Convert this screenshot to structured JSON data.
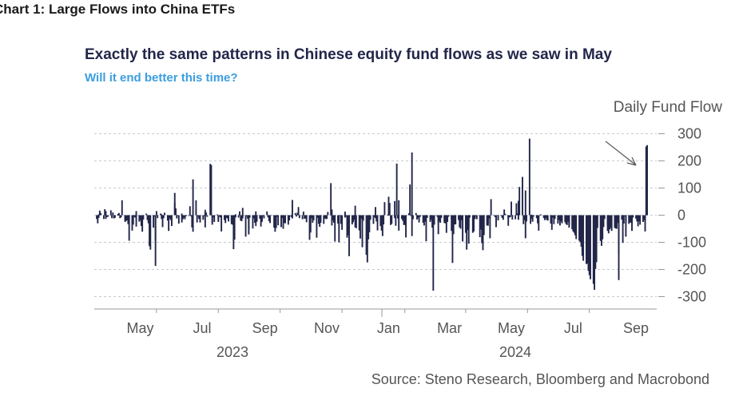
{
  "header": {
    "title": "Chart 1: Large Flows into China ETFs"
  },
  "chart_data": {
    "type": "bar",
    "title": "Exactly the same patterns in Chinese equity fund flows as we saw in May",
    "subtitle": "Will it end better this time?",
    "series_label": "Daily Fund Flow",
    "source": "Source: Steno Research, Bloomberg and Macrobond",
    "ylim": [
      -320,
      320
    ],
    "yticks": [
      300,
      200,
      100,
      0,
      -100,
      -200,
      -300
    ],
    "month_ticks": [
      "May",
      "Jul",
      "Sep",
      "Nov",
      "Jan",
      "Mar",
      "May",
      "Jul",
      "Sep"
    ],
    "years": [
      "2023",
      "2024"
    ],
    "date_range": [
      "2023-04-03",
      "2024-09-27"
    ],
    "bar_color": "#222649",
    "annotation": "arrow pointing to latest bar",
    "values": [
      -14,
      -30,
      -10,
      3,
      17,
      8,
      -14,
      22,
      -14,
      15,
      -7,
      -6,
      18,
      -11,
      -4,
      10,
      -12,
      -10,
      5,
      -2,
      8,
      -11,
      -8,
      55,
      -25,
      -18,
      -21,
      -19,
      -33,
      -4,
      -94,
      -57,
      -35,
      -6,
      -9,
      -42,
      15,
      -24,
      -19,
      -40,
      -61,
      -21,
      -16,
      6,
      -18,
      -30,
      -114,
      -4,
      -127,
      -46,
      -5,
      -94,
      -187,
      15,
      -11,
      6,
      -14,
      3,
      -44,
      -11,
      9,
      -20,
      -58,
      -13,
      -12,
      -18,
      -40,
      45,
      82,
      25,
      -12,
      -3,
      -31,
      6,
      -27,
      -15,
      -9,
      -15,
      -4,
      -3,
      -3,
      33,
      -4,
      -45,
      -61,
      132,
      55,
      -27,
      -4,
      -12,
      -14,
      -27,
      -17,
      -4,
      20,
      -45,
      10,
      -6,
      189,
      185,
      -28,
      -35,
      -8,
      -25,
      3,
      -25,
      -20,
      -5,
      -8,
      -60,
      -18,
      -11,
      -29,
      -9,
      -12,
      -23,
      -33,
      -26,
      -35,
      -125,
      -90,
      -8,
      3,
      -9,
      14,
      -20,
      -22,
      -12,
      27,
      -79,
      -4,
      -13,
      -52,
      -71,
      -9,
      -49,
      -12,
      -28,
      14,
      -40,
      -24,
      -13,
      -42,
      -21,
      -25,
      -3,
      -12,
      14,
      -8,
      -3,
      -22,
      -29,
      -1,
      -46,
      -61,
      -49,
      -47,
      -6,
      -37,
      -44,
      -7,
      -11,
      -50,
      -29,
      -30,
      -15,
      -35,
      -19,
      -1,
      -7,
      56,
      -12,
      8,
      -5,
      9,
      30,
      -5,
      -11,
      -15,
      13,
      -13,
      -13,
      -8,
      -26,
      -91,
      -64,
      -11,
      -28,
      -2,
      -19,
      -83,
      -10,
      -32,
      -14,
      -43,
      -28,
      -32,
      -8,
      -12,
      -14,
      -14,
      12,
      118,
      -38,
      21,
      -20,
      -28,
      -97,
      -19,
      -31,
      -100,
      -2,
      -32,
      -54,
      13,
      -9,
      -5,
      -83,
      -74,
      -151,
      -49,
      -34,
      -26,
      -17,
      35,
      -45,
      -48,
      -56,
      -86,
      -13,
      -27,
      -118,
      -20,
      -146,
      -174,
      -2,
      -89,
      -63,
      -17,
      -32,
      -7,
      30,
      -11,
      -23,
      -56,
      -40,
      -4,
      -57,
      -77,
      -34,
      48,
      2,
      -2,
      68,
      45,
      -36,
      -32,
      -11,
      52,
      -39,
      190,
      -12,
      55,
      -57,
      -14,
      -21,
      -36,
      -36,
      -82,
      -38,
      7,
      113,
      -3,
      -77,
      231,
      -15,
      8,
      -16,
      -10,
      -27,
      -1,
      -6,
      -28,
      -38,
      -24,
      -4,
      -96,
      -10,
      -25,
      -17,
      -3,
      -46,
      -278,
      -35,
      -6,
      -27,
      -70,
      -23,
      -28,
      -10,
      -22,
      -29,
      -30,
      -65,
      -25,
      -6,
      -13,
      -58,
      -176,
      -70,
      -34,
      -34,
      -4,
      -18,
      -45,
      -50,
      -19,
      -2,
      -97,
      -65,
      -127,
      -55,
      -105,
      -45,
      -9,
      -65,
      -60,
      -14,
      -14,
      -4,
      -15,
      -81,
      -53,
      -103,
      -3,
      -129,
      -73,
      -38,
      -39,
      -32,
      -12,
      -85,
      59,
      -1,
      -2,
      -7,
      -44,
      -2,
      -19,
      -3,
      -3,
      -10,
      -17,
      21,
      5,
      -12,
      -39,
      -8,
      -7,
      50,
      -4,
      -16,
      -15,
      44,
      7,
      -17,
      53,
      104,
      141,
      -33,
      -18,
      -85,
      91,
      -23,
      282,
      -32,
      2,
      -14,
      -24,
      -5,
      -11,
      -30,
      -7,
      -57,
      -1,
      3,
      -10,
      -15,
      -18,
      -10,
      -18,
      -20,
      -31,
      -29,
      -54,
      -9,
      -33,
      -14,
      -20,
      -31,
      -18,
      -38,
      -23,
      -21,
      -30,
      -26,
      -33,
      -36,
      -25,
      -38,
      -46,
      -52,
      -60,
      -65,
      -71,
      -74,
      -88,
      -94,
      -99,
      -116,
      -133,
      -150,
      -168,
      -180,
      -178,
      -205,
      -199,
      -221,
      -236,
      -253,
      -275,
      -227,
      -198,
      -173,
      -47,
      -95,
      -54,
      -113,
      -89,
      -44,
      -14,
      -36,
      -58,
      -67,
      -52,
      -47,
      -58,
      -28,
      -47,
      -49,
      -50,
      -29,
      -239,
      -144,
      -16,
      -102,
      -31,
      -4,
      -79,
      -30,
      -32,
      -27,
      -28,
      -58,
      -25,
      -9,
      -13,
      -23,
      -41,
      -14,
      -23,
      -35,
      -25,
      -18,
      -60,
      -25,
      253,
      258
    ]
  }
}
